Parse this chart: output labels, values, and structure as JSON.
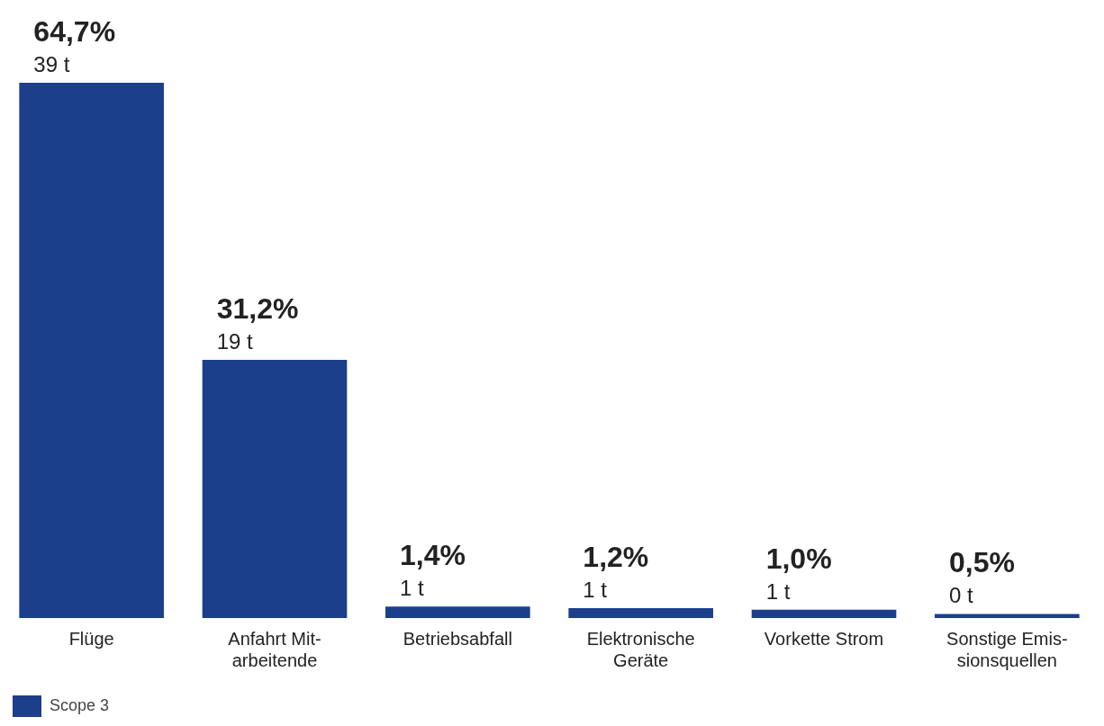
{
  "chart_data": {
    "type": "bar",
    "categories": [
      "Flüge",
      "Anfahrt Mit-\narbeitende",
      "Betriebsabfall",
      "Elektronische\nGeräte",
      "Vorkette Strom",
      "Sonstige Emis-\nsionsquellen"
    ],
    "series": [
      {
        "name": "Scope 3",
        "color": "#1b3f8b",
        "values": [
          64.7,
          31.2,
          1.4,
          1.2,
          1.0,
          0.5
        ],
        "value_labels": [
          "64,7%",
          "31,2%",
          "1,4%",
          "1,2%",
          "1,0%",
          "0,5%"
        ]
      }
    ],
    "annotations": [
      {
        "text": "39 t",
        "x": "Flüge",
        "y": 64.7
      },
      {
        "text": "19 t",
        "x": "Anfahrt Mit-\narbeitende",
        "y": 31.2
      },
      {
        "text": "1 t",
        "x": "Betriebsabfall",
        "y": 1.4
      },
      {
        "text": "1 t",
        "x": "Elektronische\nGeräte",
        "y": 1.2
      },
      {
        "text": "1 t",
        "x": "Vorkette Strom",
        "y": 1.0
      },
      {
        "text": "0 t",
        "x": "Sonstige Emis-\nsionsquellen",
        "y": 0.5
      }
    ],
    "grid": false,
    "legend": "bottom left"
  }
}
